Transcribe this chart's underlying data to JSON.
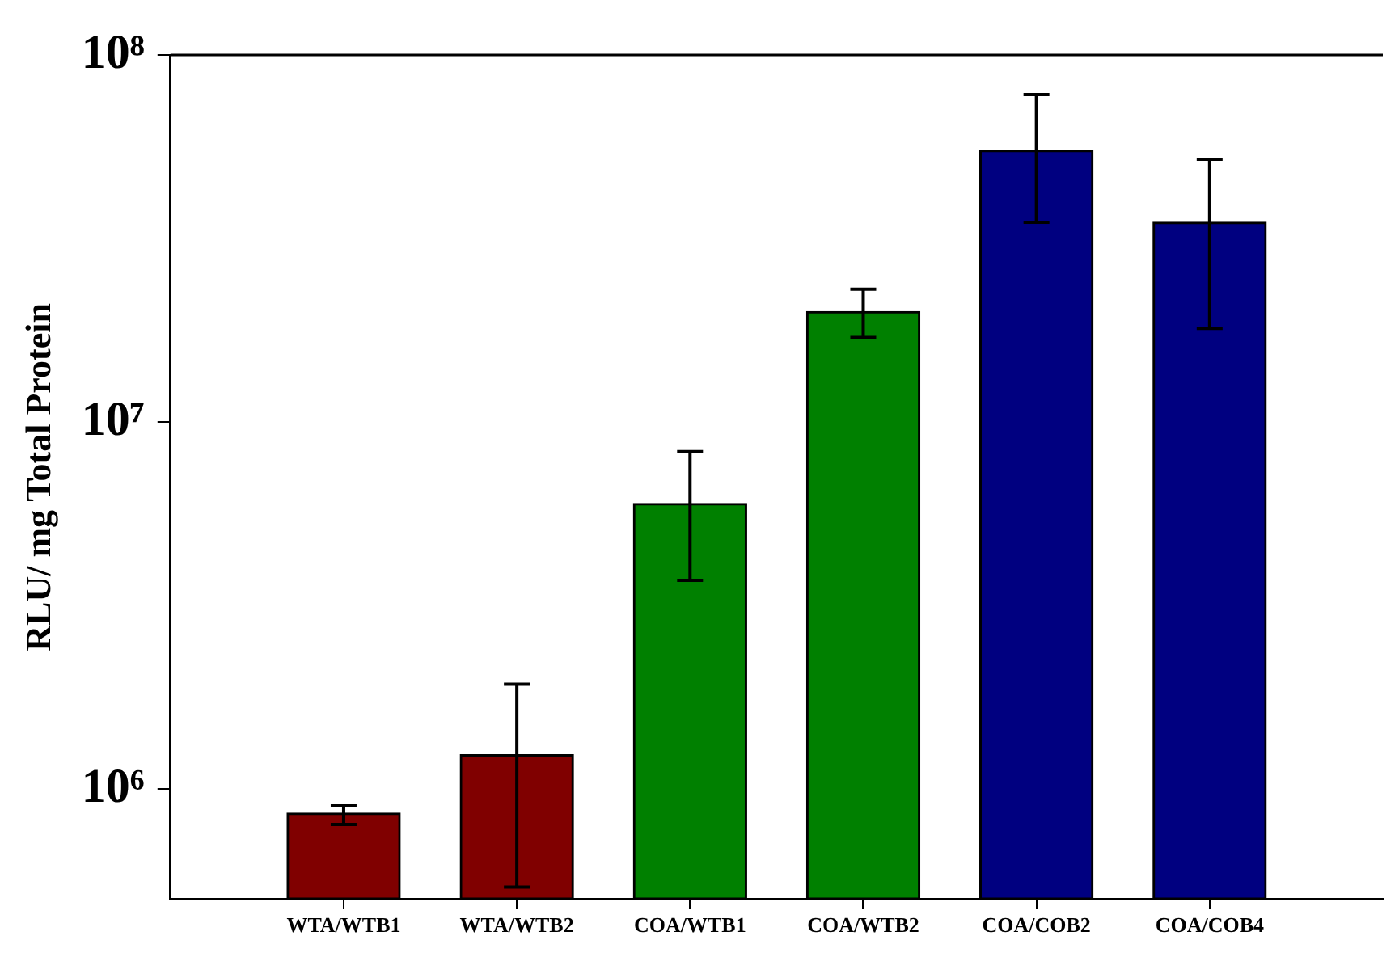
{
  "chart_data": {
    "type": "bar",
    "ylabel": "RLU/ mg Total Protein",
    "categories": [
      "WTA/WTB1",
      "WTA/WTB2",
      "COA/WTB1",
      "COA/WTB2",
      "COA/COB2",
      "COA/COB4"
    ],
    "values": [
      860000,
      1240000,
      6000000,
      20000000,
      55000000,
      35000000
    ],
    "colors": [
      "#800000",
      "#800000",
      "#008000",
      "#008000",
      "#000080",
      "#000080"
    ],
    "errors": [
      [
        800000,
        900000
      ],
      [
        540000,
        1930000
      ],
      [
        3700000,
        8300000
      ],
      [
        17000000,
        23000000
      ],
      [
        35000000,
        78000000
      ],
      [
        18000000,
        52000000
      ]
    ],
    "log": "y",
    "ylim": [
      500000,
      100000000
    ],
    "yticks": [
      {
        "value": 1000000,
        "label": "10⁶"
      },
      {
        "value": 10000000,
        "label": "10⁷"
      },
      {
        "value": 100000000,
        "label": "10⁸"
      }
    ],
    "grid": false,
    "legend": false
  }
}
